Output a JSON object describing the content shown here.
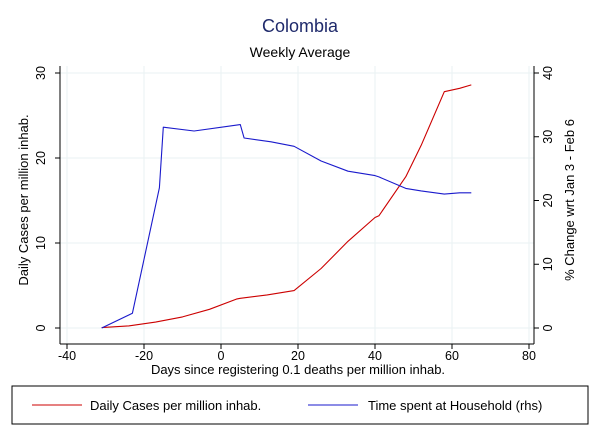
{
  "chart_data": {
    "type": "line",
    "title": "Colombia",
    "subtitle": "Weekly Average",
    "xlabel": "Days since registering 0.1 deaths per million inhab.",
    "ylabel_left": "Daily Cases per million inhab.",
    "ylabel_right": "% Change wrt Jan 3 - Feb 6",
    "xlim": [
      -40,
      80
    ],
    "ylim_left": [
      0,
      30
    ],
    "ylim_right": [
      0,
      40
    ],
    "x_ticks": [
      -40,
      -20,
      0,
      20,
      40,
      60,
      80
    ],
    "y_ticks_left": [
      0,
      10,
      20,
      30
    ],
    "y_ticks_right": [
      0,
      10,
      20,
      30,
      40
    ],
    "grid": true,
    "legend_position": "bottom",
    "series": [
      {
        "name": "Daily Cases per million inhab.",
        "axis": "left",
        "color": "#cc0000",
        "x": [
          -31,
          -24,
          -17,
          -10,
          -3,
          4,
          5,
          12,
          19,
          26,
          33,
          40,
          41,
          48,
          52,
          58,
          62,
          65
        ],
        "y": [
          0.05,
          0.25,
          0.7,
          1.3,
          2.2,
          3.4,
          3.5,
          3.9,
          4.4,
          7.0,
          10.2,
          13.0,
          13.2,
          17.8,
          21.5,
          27.8,
          28.2,
          28.6
        ]
      },
      {
        "name": "Time spent at Household (rhs)",
        "axis": "right",
        "color": "#1a1acc",
        "x": [
          -31,
          -23,
          -16,
          -15,
          -7,
          5,
          6,
          13,
          19,
          26,
          33,
          40,
          41,
          48,
          52,
          58,
          62,
          65
        ],
        "y": [
          0,
          2.3,
          22,
          31.5,
          30.9,
          31.9,
          29.8,
          29.2,
          28.5,
          26.2,
          24.6,
          23.9,
          23.7,
          21.9,
          21.5,
          21.0,
          21.2,
          21.2
        ]
      }
    ]
  }
}
